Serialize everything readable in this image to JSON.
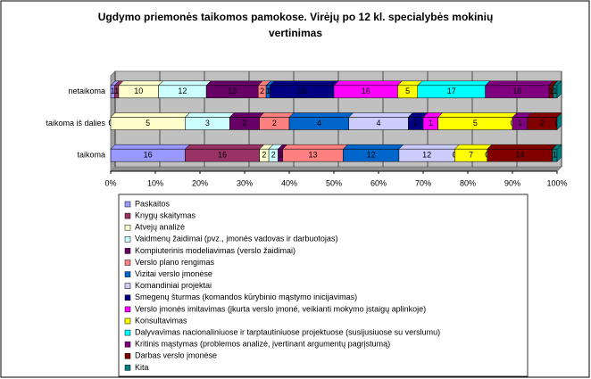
{
  "chart_data": {
    "type": "stacked_bar_100",
    "title": [
      "Ugdymo priemonės taikomos pamokose. Virėjų  po 12 kl. specialybės mokinių",
      "vertinimas"
    ],
    "categories": [
      "netaikoma",
      "taikoma iš dalies",
      "taikoma"
    ],
    "xlim": [
      0,
      100
    ],
    "xticks": [
      {
        "value": 0,
        "label": "0%"
      },
      {
        "value": 10,
        "label": "10%"
      },
      {
        "value": 20,
        "label": "20%"
      },
      {
        "value": 30,
        "label": "30%"
      },
      {
        "value": 40,
        "label": "40%"
      },
      {
        "value": 50,
        "label": "50%"
      },
      {
        "value": 60,
        "label": "60%"
      },
      {
        "value": 70,
        "label": "70%"
      },
      {
        "value": 80,
        "label": "80%"
      },
      {
        "value": 90,
        "label": "90%"
      },
      {
        "value": 100,
        "label": "100%"
      }
    ],
    "grid": true,
    "legend": "bottom",
    "series": [
      {
        "name": "Paskaitos",
        "color": "#9999ff",
        "values": [
          1,
          0,
          16
        ]
      },
      {
        "name": "Knygų skaitymas",
        "color": "#993366",
        "values": [
          1,
          0,
          16
        ]
      },
      {
        "name": "Atvejų analizė",
        "color": "#ffffcc",
        "values": [
          10,
          5,
          2
        ]
      },
      {
        "name": "Vaidmenų žaidimai (pvz., įmonės vadovas ir darbuotojas)",
        "color": "#ccffff",
        "values": [
          12,
          3,
          2
        ]
      },
      {
        "name": "Kompiuterinis modeliavimas (verslo žaidimai)",
        "color": "#660066",
        "values": [
          13,
          2,
          1
        ]
      },
      {
        "name": "Verslo plano rengimas",
        "color": "#ff8080",
        "values": [
          2,
          2,
          13
        ]
      },
      {
        "name": "Vizitai verslo įmonėse",
        "color": "#0066cc",
        "values": [
          1,
          4,
          12
        ]
      },
      {
        "name": "Komandiniai projektai",
        "color": "#ccccff",
        "values": [
          0,
          4,
          12
        ]
      },
      {
        "name": "Smegenų šturmas (komandos kūrybinio mąstymo inicijavimas)",
        "color": "#000080",
        "values": [
          16,
          1,
          0
        ]
      },
      {
        "name": "Verslo įmonės imitavimas (įkurta verslo įmonė, veikianti mokymo įstaigų aplinkoje)",
        "color": "#ff00ff",
        "values": [
          16,
          1,
          0
        ]
      },
      {
        "name": "Konsultavimas",
        "color": "#ffff00",
        "values": [
          5,
          5,
          7
        ]
      },
      {
        "name": "Dalyvavimas nacionaliniuose ir tarptautiniuose projektuose (susijusiuose su verslumu)",
        "color": "#00ffff",
        "values": [
          17,
          0,
          0
        ]
      },
      {
        "name": "Kritinis mąstymas (problemos analizė, įvertinant argumentų pagrįstumą)",
        "color": "#800080",
        "values": [
          16,
          1,
          0
        ]
      },
      {
        "name": "Darbas verslo įmonėse",
        "color": "#800000",
        "values": [
          1,
          2,
          14
        ]
      },
      {
        "name": "Kita",
        "color": "#008080",
        "values": [
          1,
          0,
          1
        ]
      }
    ]
  }
}
